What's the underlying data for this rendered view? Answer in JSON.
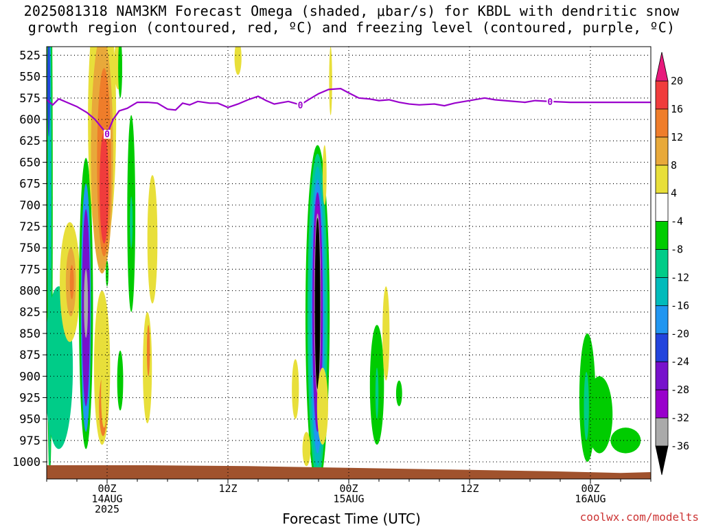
{
  "title_line1": "2025081318 NAM3KM Forecast Omega (shaded, μbar/s) for KBDL with dendritic snow",
  "title_line2": "growth region (contoured, red, ºC) and freezing level (contoured, purple, ºC)",
  "credit": "coolwx.com/modelts",
  "chart_data": {
    "type": "heatmap",
    "xlabel": "Forecast Time (UTC)",
    "ylabel": "",
    "x_ticks": [
      {
        "hour": 6,
        "label1": "00Z",
        "label2": "14AUG",
        "label3": "2025"
      },
      {
        "hour": 18,
        "label1": "12Z",
        "label2": "",
        "label3": ""
      },
      {
        "hour": 30,
        "label1": "00Z",
        "label2": "15AUG",
        "label3": ""
      },
      {
        "hour": 42,
        "label1": "12Z",
        "label2": "",
        "label3": ""
      },
      {
        "hour": 54,
        "label1": "00Z",
        "label2": "16AUG",
        "label3": ""
      }
    ],
    "xlim": [
      0,
      60
    ],
    "y_ticks": [
      525,
      550,
      575,
      600,
      625,
      650,
      675,
      700,
      725,
      750,
      775,
      800,
      825,
      850,
      875,
      900,
      925,
      950,
      975,
      1000
    ],
    "ylim_mb": [
      515,
      1020
    ],
    "grid": true,
    "colorbar": {
      "ticks": [
        "20",
        "16",
        "12",
        "8",
        "4",
        "-4",
        "-8",
        "-12",
        "-16",
        "-20",
        "-24",
        "-28",
        "-32",
        "-36"
      ],
      "bins": [
        {
          "range": "> 20",
          "color": "#e8197c"
        },
        {
          "range": "16 to 20",
          "color": "#f03c3c"
        },
        {
          "range": "12 to 16",
          "color": "#ef7d2a"
        },
        {
          "range": "8 to 12",
          "color": "#e8a93a"
        },
        {
          "range": "4 to 8",
          "color": "#e8df3a"
        },
        {
          "range": "-4 to 4",
          "color": "#ffffff"
        },
        {
          "range": "-8 to -4",
          "color": "#00cc00"
        },
        {
          "range": "-12 to -8",
          "color": "#00cc88"
        },
        {
          "range": "-16 to -12",
          "color": "#00bbbb"
        },
        {
          "range": "-20 to -16",
          "color": "#2196f0"
        },
        {
          "range": "-24 to -20",
          "color": "#2244dd"
        },
        {
          "range": "-28 to -24",
          "color": "#7711cc"
        },
        {
          "range": "-32 to -28",
          "color": "#9900cc"
        },
        {
          "range": "-36 to -32",
          "color": "#aaaaaa"
        },
        {
          "range": "< -36",
          "color": "#000000"
        }
      ]
    },
    "freezing_level": {
      "label": "0",
      "color": "#9900cc",
      "points": [
        [
          0.0,
          577
        ],
        [
          0.6,
          583
        ],
        [
          1.2,
          576
        ],
        [
          2.0,
          580
        ],
        [
          3.0,
          585
        ],
        [
          4.0,
          592
        ],
        [
          4.8,
          600
        ],
        [
          5.5,
          610
        ],
        [
          6.0,
          617
        ],
        [
          6.6,
          600
        ],
        [
          7.2,
          590
        ],
        [
          8.0,
          587
        ],
        [
          9.0,
          580
        ],
        [
          10.0,
          580
        ],
        [
          11.0,
          581
        ],
        [
          12.0,
          588
        ],
        [
          12.8,
          589
        ],
        [
          13.5,
          581
        ],
        [
          14.2,
          583
        ],
        [
          15.0,
          579
        ],
        [
          16.2,
          581
        ],
        [
          17.0,
          581
        ],
        [
          18.0,
          586
        ],
        [
          19.0,
          582
        ],
        [
          20.0,
          577
        ],
        [
          21.0,
          573
        ],
        [
          21.8,
          578
        ],
        [
          22.6,
          582
        ],
        [
          24.0,
          579
        ],
        [
          25.2,
          583
        ],
        [
          26.0,
          577
        ],
        [
          27.0,
          570
        ],
        [
          28.0,
          565
        ],
        [
          29.2,
          564
        ],
        [
          30.0,
          569
        ],
        [
          31.0,
          575
        ],
        [
          32.0,
          576
        ],
        [
          33.0,
          578
        ],
        [
          34.0,
          577
        ],
        [
          35.0,
          580
        ],
        [
          36.0,
          582
        ],
        [
          37.0,
          583
        ],
        [
          38.5,
          582
        ],
        [
          39.5,
          584
        ],
        [
          40.5,
          581
        ],
        [
          41.5,
          579
        ],
        [
          42.5,
          577
        ],
        [
          43.5,
          575
        ],
        [
          44.5,
          577
        ],
        [
          45.5,
          578
        ],
        [
          46.5,
          579
        ],
        [
          47.5,
          580
        ],
        [
          48.5,
          578
        ],
        [
          50.0,
          579
        ],
        [
          52.0,
          580
        ],
        [
          54.0,
          580
        ],
        [
          56.0,
          580
        ],
        [
          58.0,
          580
        ],
        [
          60.0,
          580
        ]
      ]
    },
    "blobs": [
      {
        "t": 0.3,
        "p": 690,
        "dt": 0.3,
        "dp": 330,
        "color": "#00cc00"
      },
      {
        "t": 0.3,
        "p": 700,
        "dt": 0.2,
        "dp": 310,
        "color": "#00cc88"
      },
      {
        "t": 0.3,
        "p": 620,
        "dt": 0.15,
        "dp": 160,
        "color": "#00bbbb"
      },
      {
        "t": 0.2,
        "p": 560,
        "dt": 0.12,
        "dp": 60,
        "color": "#2244dd"
      },
      {
        "t": 1.2,
        "p": 890,
        "dt": 1.4,
        "dp": 95,
        "color": "#00cc88"
      },
      {
        "t": 2.3,
        "p": 790,
        "dt": 1.0,
        "dp": 70,
        "color": "#e8df3a"
      },
      {
        "t": 2.4,
        "p": 790,
        "dt": 0.5,
        "dp": 40,
        "color": "#e8a93a"
      },
      {
        "t": 2.5,
        "p": 790,
        "dt": 0.2,
        "dp": 20,
        "color": "#ef7d2a"
      },
      {
        "t": 3.9,
        "p": 815,
        "dt": 0.7,
        "dp": 170,
        "color": "#00cc00"
      },
      {
        "t": 3.9,
        "p": 820,
        "dt": 0.5,
        "dp": 145,
        "color": "#2196f0"
      },
      {
        "t": 3.9,
        "p": 820,
        "dt": 0.4,
        "dp": 115,
        "color": "#7711cc"
      },
      {
        "t": 3.9,
        "p": 815,
        "dt": 0.2,
        "dp": 40,
        "color": "#aaaaaa"
      },
      {
        "t": 5.5,
        "p": 600,
        "dt": 1.4,
        "dp": 160,
        "color": "#e8df3a"
      },
      {
        "t": 5.5,
        "p": 640,
        "dt": 1.1,
        "dp": 140,
        "color": "#e8a93a"
      },
      {
        "t": 5.7,
        "p": 650,
        "dt": 0.7,
        "dp": 110,
        "color": "#ef7d2a"
      },
      {
        "t": 5.7,
        "p": 680,
        "dt": 0.45,
        "dp": 65,
        "color": "#f03c3c"
      },
      {
        "t": 5.5,
        "p": 890,
        "dt": 0.8,
        "dp": 90,
        "color": "#e8df3a"
      },
      {
        "t": 5.6,
        "p": 935,
        "dt": 0.4,
        "dp": 35,
        "color": "#ef7d2a"
      },
      {
        "t": 7.1,
        "p": 535,
        "dt": 0.4,
        "dp": 30,
        "color": "#e8df3a"
      },
      {
        "t": 7.3,
        "p": 540,
        "dt": 0.2,
        "dp": 35,
        "color": "#00cc00"
      },
      {
        "t": 8.4,
        "p": 710,
        "dt": 0.4,
        "dp": 115,
        "color": "#00cc00"
      },
      {
        "t": 8.4,
        "p": 720,
        "dt": 0.1,
        "dp": 30,
        "color": "#00cc88"
      },
      {
        "t": 6.0,
        "p": 780,
        "dt": 0.1,
        "dp": 15,
        "color": "#00cc00"
      },
      {
        "t": 7.3,
        "p": 905,
        "dt": 0.3,
        "dp": 35,
        "color": "#00cc00"
      },
      {
        "t": 5.7,
        "p": 920,
        "dt": 0.3,
        "dp": 40,
        "color": "#e8df3a"
      },
      {
        "t": 10.5,
        "p": 740,
        "dt": 0.5,
        "dp": 75,
        "color": "#e8df3a"
      },
      {
        "t": 10.0,
        "p": 890,
        "dt": 0.45,
        "dp": 65,
        "color": "#e8df3a"
      },
      {
        "t": 10.1,
        "p": 870,
        "dt": 0.15,
        "dp": 30,
        "color": "#ef7d2a"
      },
      {
        "t": 19.0,
        "p": 528,
        "dt": 0.35,
        "dp": 20,
        "color": "#e8df3a"
      },
      {
        "t": 26.9,
        "p": 830,
        "dt": 1.2,
        "dp": 200,
        "color": "#00cc00"
      },
      {
        "t": 26.9,
        "p": 830,
        "dt": 1.0,
        "dp": 190,
        "color": "#00cc88"
      },
      {
        "t": 26.9,
        "p": 830,
        "dt": 0.8,
        "dp": 175,
        "color": "#00bbbb"
      },
      {
        "t": 26.9,
        "p": 830,
        "dt": 0.65,
        "dp": 160,
        "color": "#2196f0"
      },
      {
        "t": 26.9,
        "p": 825,
        "dt": 0.52,
        "dp": 140,
        "color": "#7711cc"
      },
      {
        "t": 26.9,
        "p": 815,
        "dt": 0.4,
        "dp": 115,
        "color": "#9900cc"
      },
      {
        "t": 26.9,
        "p": 815,
        "dt": 0.33,
        "dp": 105,
        "color": "#aaaaaa"
      },
      {
        "t": 26.9,
        "p": 815,
        "dt": 0.27,
        "dp": 100,
        "color": "#000000"
      },
      {
        "t": 27.6,
        "p": 665,
        "dt": 0.2,
        "dp": 35,
        "color": "#e8df3a"
      },
      {
        "t": 28.2,
        "p": 555,
        "dt": 0.15,
        "dp": 40,
        "color": "#e8df3a"
      },
      {
        "t": 24.7,
        "p": 915,
        "dt": 0.35,
        "dp": 35,
        "color": "#e8df3a"
      },
      {
        "t": 25.8,
        "p": 985,
        "dt": 0.4,
        "dp": 20,
        "color": "#e8df3a"
      },
      {
        "t": 27.4,
        "p": 935,
        "dt": 0.55,
        "dp": 45,
        "color": "#e8df3a"
      },
      {
        "t": 32.8,
        "p": 910,
        "dt": 0.7,
        "dp": 70,
        "color": "#00cc00"
      },
      {
        "t": 32.8,
        "p": 920,
        "dt": 0.15,
        "dp": 30,
        "color": "#00cc88"
      },
      {
        "t": 33.7,
        "p": 850,
        "dt": 0.35,
        "dp": 55,
        "color": "#e8df3a"
      },
      {
        "t": 35.0,
        "p": 920,
        "dt": 0.3,
        "dp": 15,
        "color": "#00cc00"
      },
      {
        "t": 53.7,
        "p": 925,
        "dt": 0.8,
        "dp": 75,
        "color": "#00cc00"
      },
      {
        "t": 54.9,
        "p": 945,
        "dt": 1.3,
        "dp": 45,
        "color": "#00cc00"
      },
      {
        "t": 57.5,
        "p": 975,
        "dt": 1.5,
        "dp": 15,
        "color": "#00cc00"
      },
      {
        "t": 53.6,
        "p": 935,
        "dt": 0.25,
        "dp": 40,
        "color": "#00cc88"
      }
    ],
    "terrain": {
      "color": "#a0522d",
      "surface_mb": [
        [
          0,
          1004
        ],
        [
          10,
          1004
        ],
        [
          20,
          1005
        ],
        [
          30,
          1007
        ],
        [
          40,
          1009
        ],
        [
          50,
          1011
        ],
        [
          57,
          1013
        ],
        [
          60,
          1012
        ]
      ]
    }
  }
}
